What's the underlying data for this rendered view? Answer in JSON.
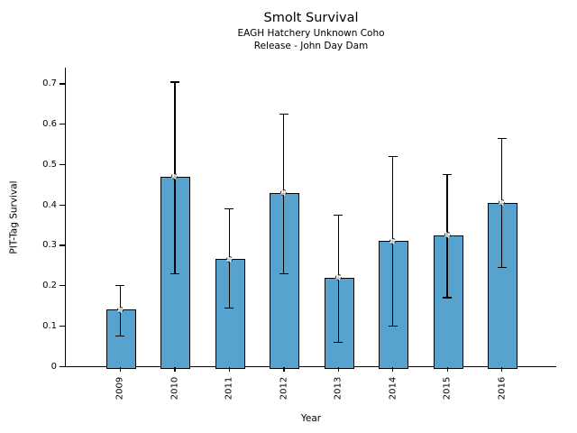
{
  "chart_data": {
    "type": "bar",
    "title": "Smolt Survival",
    "subtitle_line1": "EAGH Hatchery Unknown Coho",
    "subtitle_line2": "Release - John Day Dam",
    "xlabel": "Year",
    "ylabel": "PIT-Tag Survival",
    "categories": [
      "2009",
      "2010",
      "2011",
      "2012",
      "2013",
      "2014",
      "2015",
      "2016"
    ],
    "series": [
      {
        "name": "PIT-Tag Survival",
        "values": [
          0.14,
          0.47,
          0.265,
          0.43,
          0.22,
          0.31,
          0.325,
          0.405
        ],
        "error_low": [
          0.075,
          0.23,
          0.145,
          0.23,
          0.06,
          0.1,
          0.17,
          0.245
        ],
        "error_high": [
          0.2,
          0.705,
          0.39,
          0.625,
          0.375,
          0.52,
          0.475,
          0.565
        ]
      }
    ],
    "yticks": {
      "values": [
        0,
        0.1,
        0.2,
        0.3,
        0.4,
        0.5,
        0.6,
        0.7
      ],
      "labels": [
        "0",
        "0.1",
        "0.2",
        "0.3",
        "0.4",
        "0.5",
        "0.6",
        "0.7"
      ]
    },
    "ylim": [
      0,
      0.74
    ],
    "grid": false,
    "legend_position": "none",
    "marker": "open-circle-dotted",
    "colors": {
      "bar_fill": "#57a3d0",
      "bar_edge": "#000000",
      "error_bar": "#000000",
      "axis": "#000000",
      "text": "#000000",
      "background": "#ffffff"
    }
  }
}
